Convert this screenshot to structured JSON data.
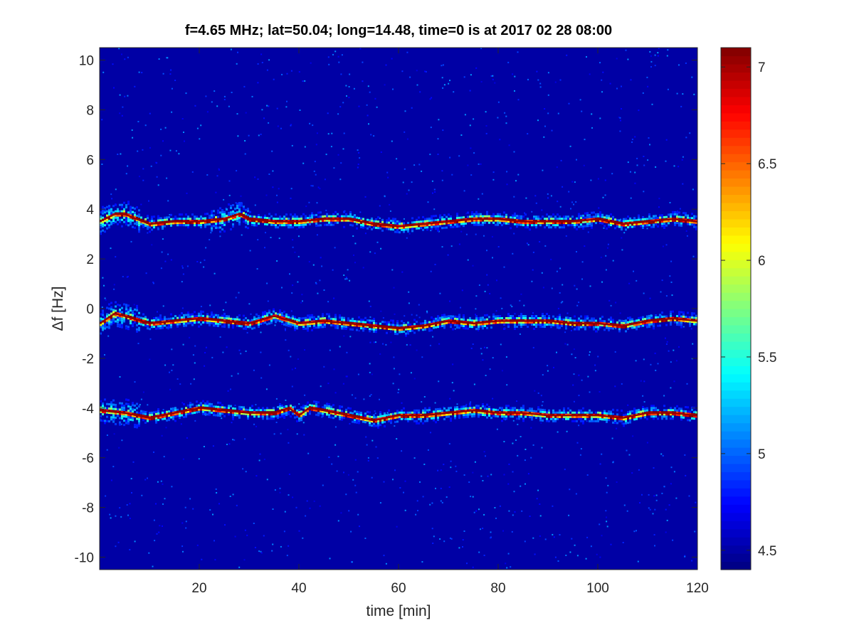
{
  "chart_data": {
    "type": "heatmap",
    "title": "f=4.65 MHz;  lat=50.04; long=14.48, time=0 is at 2017 02 28 08:00",
    "xlabel": "time [min]",
    "ylabel": "Δf [Hz]",
    "xlim": [
      0,
      120
    ],
    "ylim": [
      -10.5,
      10.5
    ],
    "xticks": [
      20,
      40,
      60,
      80,
      100,
      120
    ],
    "yticks": [
      -10,
      -8,
      -6,
      -4,
      -2,
      0,
      2,
      4,
      6,
      8,
      10
    ],
    "colormap": "jet",
    "colorbar": {
      "clim": [
        4.4,
        7.1
      ],
      "ticks": [
        4.5,
        5,
        5.5,
        6,
        6.5,
        7
      ],
      "tick_labels": [
        "4.5",
        "5",
        "5.5",
        "6",
        "6.5",
        "7"
      ]
    },
    "background_value": 4.5,
    "ridges": [
      {
        "t": [
          0,
          3,
          5,
          10,
          15,
          20,
          25,
          28,
          30,
          35,
          40,
          45,
          50,
          55,
          60,
          65,
          70,
          75,
          80,
          85,
          90,
          95,
          100,
          105,
          110,
          115,
          120
        ],
        "df": [
          3.5,
          3.8,
          3.8,
          3.4,
          3.5,
          3.5,
          3.6,
          3.8,
          3.6,
          3.5,
          3.5,
          3.6,
          3.6,
          3.4,
          3.3,
          3.4,
          3.5,
          3.6,
          3.6,
          3.5,
          3.5,
          3.5,
          3.6,
          3.4,
          3.5,
          3.6,
          3.5
        ]
      },
      {
        "t": [
          0,
          3,
          5,
          10,
          15,
          20,
          25,
          30,
          35,
          40,
          45,
          50,
          55,
          60,
          65,
          70,
          75,
          80,
          85,
          90,
          95,
          100,
          105,
          110,
          115,
          120
        ],
        "df": [
          -0.6,
          -0.2,
          -0.3,
          -0.6,
          -0.5,
          -0.4,
          -0.5,
          -0.6,
          -0.3,
          -0.6,
          -0.5,
          -0.6,
          -0.7,
          -0.8,
          -0.7,
          -0.5,
          -0.6,
          -0.5,
          -0.5,
          -0.5,
          -0.6,
          -0.6,
          -0.7,
          -0.5,
          -0.4,
          -0.5
        ]
      },
      {
        "t": [
          0,
          5,
          10,
          15,
          20,
          25,
          30,
          35,
          38,
          40,
          42,
          45,
          50,
          55,
          60,
          65,
          70,
          75,
          80,
          85,
          90,
          95,
          100,
          105,
          110,
          115,
          120
        ],
        "df": [
          -4.1,
          -4.2,
          -4.4,
          -4.2,
          -4.0,
          -4.1,
          -4.2,
          -4.2,
          -4.0,
          -4.3,
          -4.0,
          -4.1,
          -4.3,
          -4.5,
          -4.3,
          -4.3,
          -4.2,
          -4.1,
          -4.2,
          -4.2,
          -4.3,
          -4.3,
          -4.3,
          -4.4,
          -4.2,
          -4.2,
          -4.3
        ]
      }
    ],
    "ridge_peak_value": 7.05,
    "grid": false
  }
}
